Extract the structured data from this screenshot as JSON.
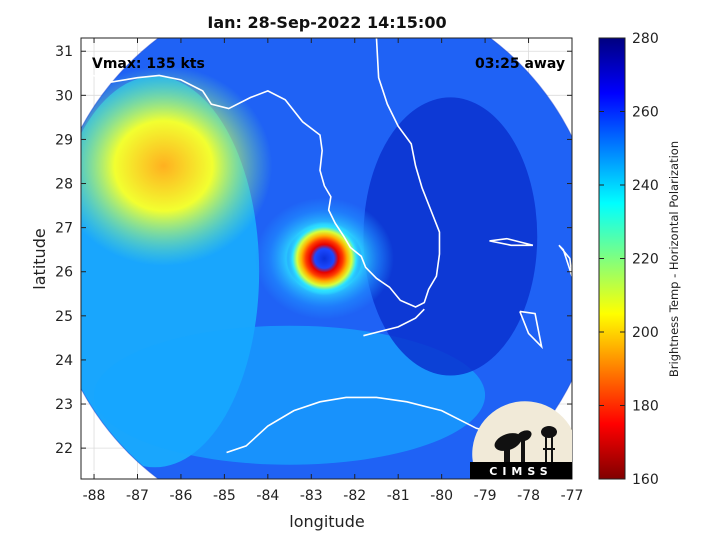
{
  "chart_data": {
    "type": "heatmap",
    "title": "Ian: 28-Sep-2022 14:15:00",
    "xlabel": "longitude",
    "ylabel": "latitude",
    "xlim": [
      -88.3,
      -77
    ],
    "ylim": [
      21.3,
      31.3
    ],
    "x_ticks": [
      -88,
      -87,
      -86,
      -85,
      -84,
      -83,
      -82,
      -81,
      -80,
      -79,
      -78,
      -77
    ],
    "y_ticks": [
      22,
      23,
      24,
      25,
      26,
      27,
      28,
      29,
      30,
      31
    ],
    "grid": true,
    "annotations": {
      "vmax": "Vmax: 135 kts",
      "time_away": "03:25 away"
    },
    "storm_center": {
      "lon": -82.7,
      "lat": 26.3
    },
    "swath_center": {
      "lon": -82.7,
      "lat": 26.3
    },
    "swath_radius_deg": 6.35,
    "colorbar": {
      "label": "Brightness Temp - Horizontal Polarization",
      "min": 160,
      "max": 280,
      "ticks": [
        160,
        180,
        200,
        220,
        240,
        260,
        280
      ],
      "colormap": "jet"
    },
    "logo": "CIMSS"
  }
}
